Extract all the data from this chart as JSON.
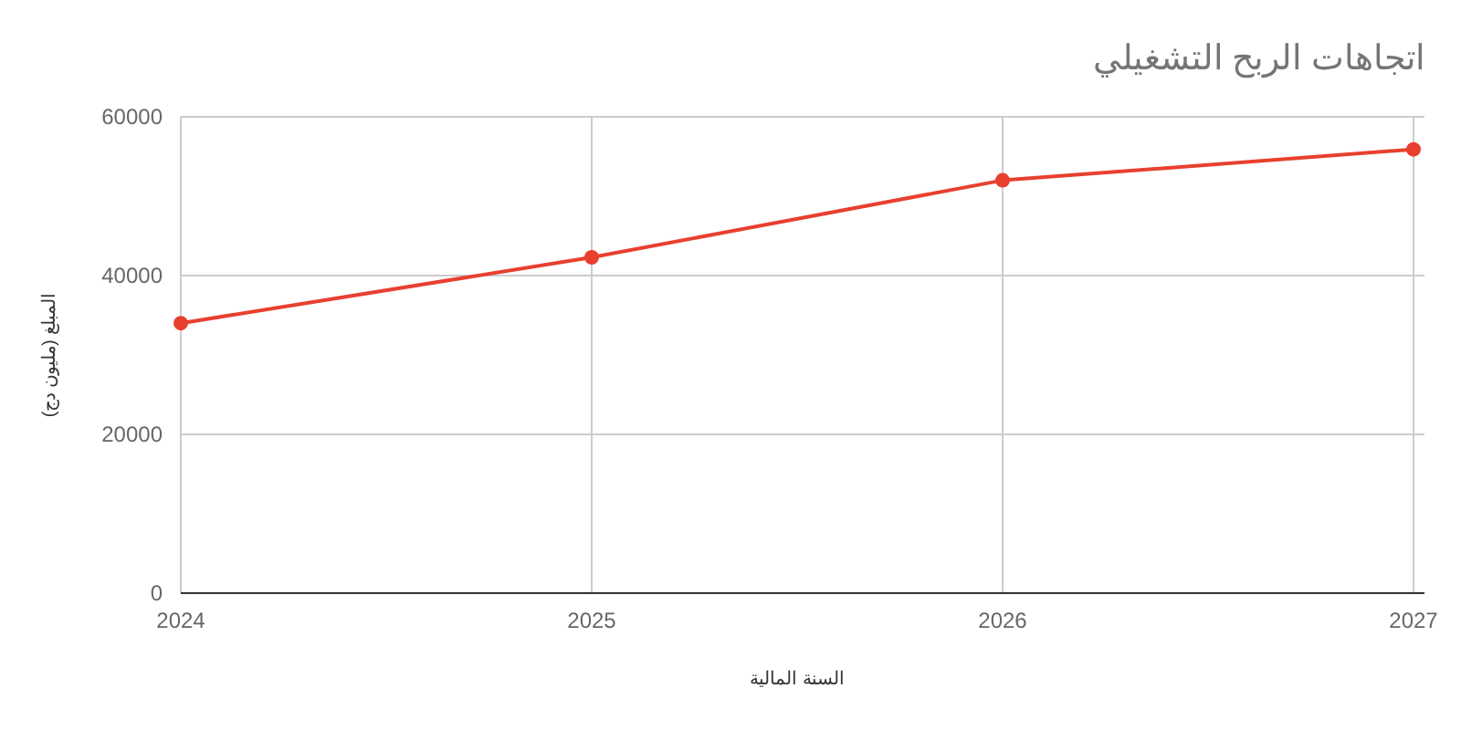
{
  "chart_data": {
    "type": "line",
    "title": "اتجاهات الربح التشغيلي",
    "xlabel": "السنة المالية",
    "ylabel": "المبلغ (مليون دج)",
    "x": [
      2024,
      2025,
      2026,
      2027
    ],
    "series": [
      {
        "color": "#e8402f",
        "values": [
          34000,
          42300,
          52000,
          55900
        ]
      }
    ],
    "xlim": [
      2024,
      2027
    ],
    "xticks": [
      2024,
      2025,
      2026,
      2027
    ],
    "ylim": [
      0,
      60000
    ],
    "yticks": [
      0,
      20000,
      40000,
      60000
    ],
    "grid": true,
    "marker": "circle",
    "line_style": "solid"
  }
}
